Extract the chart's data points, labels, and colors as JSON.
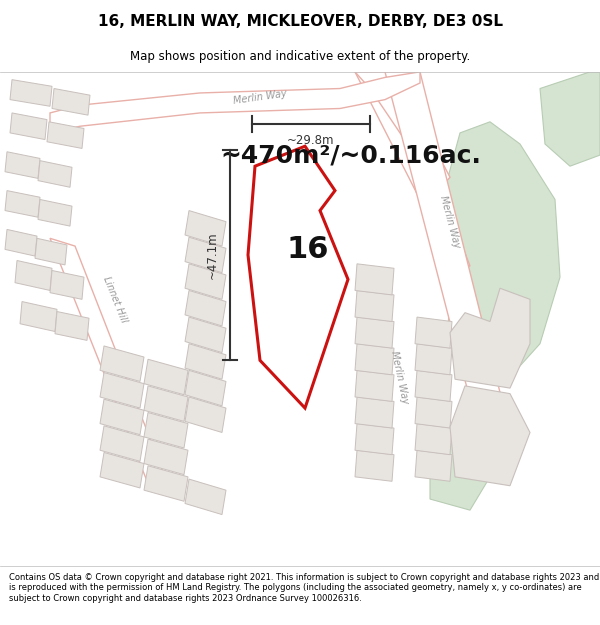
{
  "title": "16, MERLIN WAY, MICKLEOVER, DERBY, DE3 0SL",
  "subtitle": "Map shows position and indicative extent of the property.",
  "area_text": "~470m²/~0.116ac.",
  "number_label": "16",
  "dim_width": "~29.8m",
  "dim_height": "~47.1m",
  "footer": "Contains OS data © Crown copyright and database right 2021. This information is subject to Crown copyright and database rights 2023 and is reproduced with the permission of HM Land Registry. The polygons (including the associated geometry, namely x, y co-ordinates) are subject to Crown copyright and database rights 2023 Ordnance Survey 100026316.",
  "map_bg": "#f2f0ee",
  "road_edge": "#e8b0a8",
  "road_fill": "#ffffff",
  "bld_fill": "#e8e4e0",
  "bld_edge": "#c8c0bc",
  "green_fill": "#d4e4d0",
  "green_edge": "#b8ccb4",
  "plot_color": "#cc1111",
  "plot_fill": "#ffffff",
  "dim_color": "#333333",
  "text_color": "#888888",
  "white": "#ffffff",
  "black": "#000000"
}
